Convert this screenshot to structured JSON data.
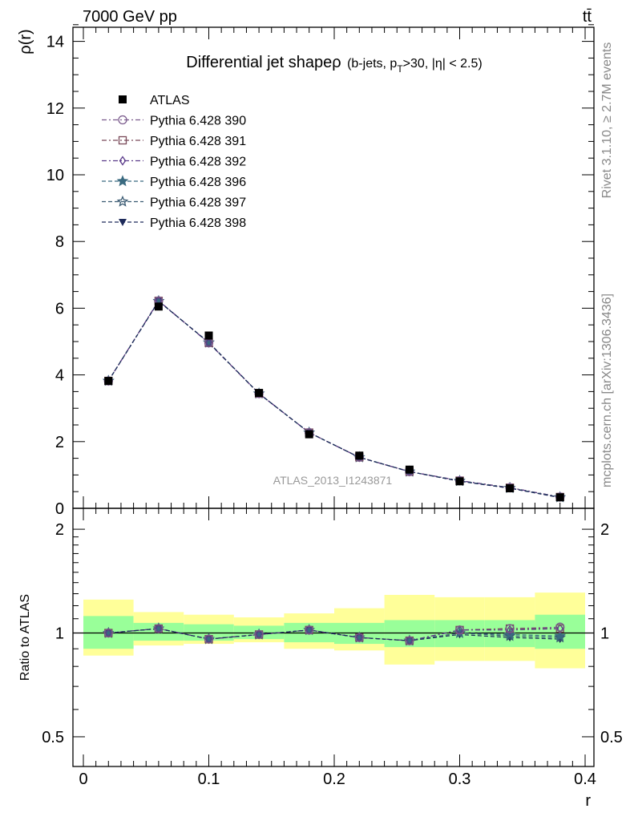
{
  "header": {
    "left": "7000 GeV pp",
    "right": "tt̄"
  },
  "side_text": {
    "rivet": "Rivet 3.1.10, ≥ 2.7M events",
    "mcplots": "mcplots.cern.ch [arXiv:1306.3436]"
  },
  "chart_data": [
    {
      "type": "scatter",
      "panel": "main",
      "title": "Differential jet shapeρ",
      "title_qualifier": "(b-jets, p_T>30, |η| < 2.5)",
      "ylabel": "ρ(r)",
      "xlabel": "",
      "xlim": [
        0,
        0.4
      ],
      "ylim": [
        0,
        14.5
      ],
      "yticks": [
        0,
        2,
        4,
        6,
        8,
        10,
        12,
        14
      ],
      "grid": false,
      "legend_position": "top-left",
      "watermark": "ATLAS_2013_I1243871",
      "x": [
        0.02,
        0.06,
        0.1,
        0.14,
        0.18,
        0.22,
        0.26,
        0.3,
        0.34,
        0.38
      ],
      "series": [
        {
          "name": "ATLAS",
          "marker": "filled-square",
          "color": "#000000",
          "values": [
            3.82,
            6.05,
            5.18,
            3.46,
            2.22,
            1.58,
            1.16,
            0.81,
            0.6,
            0.33
          ]
        },
        {
          "name": "Pythia 6.428 390",
          "marker": "open-circle",
          "color": "#7a5a8c",
          "dash": "dashdot",
          "values": [
            3.82,
            6.22,
            4.96,
            3.44,
            2.27,
            1.53,
            1.1,
            0.83,
            0.62,
            0.34
          ]
        },
        {
          "name": "Pythia 6.428 391",
          "marker": "open-square",
          "color": "#7a4a5a",
          "dash": "dashdot",
          "values": [
            3.82,
            6.22,
            4.96,
            3.44,
            2.27,
            1.53,
            1.1,
            0.83,
            0.62,
            0.34
          ]
        },
        {
          "name": "Pythia 6.428 392",
          "marker": "open-diamond",
          "color": "#5a3a8a",
          "dash": "dashdot",
          "values": [
            3.82,
            6.22,
            4.96,
            3.44,
            2.27,
            1.53,
            1.1,
            0.83,
            0.62,
            0.34
          ]
        },
        {
          "name": "Pythia 6.428 396",
          "marker": "filled-star",
          "color": "#3a6a80",
          "dash": "dashed",
          "values": [
            3.82,
            6.21,
            4.97,
            3.44,
            2.27,
            1.53,
            1.1,
            0.82,
            0.61,
            0.33
          ]
        },
        {
          "name": "Pythia 6.428 397",
          "marker": "open-star",
          "color": "#3a5a72",
          "dash": "dashed",
          "values": [
            3.82,
            6.21,
            4.97,
            3.44,
            2.27,
            1.53,
            1.1,
            0.82,
            0.61,
            0.33
          ]
        },
        {
          "name": "Pythia 6.428 398",
          "marker": "filled-triangle-down",
          "color": "#1e2a5a",
          "dash": "dashed",
          "values": [
            3.82,
            6.21,
            4.97,
            3.44,
            2.27,
            1.53,
            1.1,
            0.81,
            0.6,
            0.32
          ]
        }
      ]
    },
    {
      "type": "scatter",
      "panel": "ratio",
      "ylabel": "Ratio to ATLAS",
      "xlabel": "r",
      "xlim": [
        0,
        0.4
      ],
      "ylim": [
        0.41,
        2.3
      ],
      "ylog": true,
      "yticks": [
        0.5,
        1,
        2
      ],
      "xticks": [
        0,
        0.1,
        0.2,
        0.3,
        0.4
      ],
      "grid": false,
      "reference_line": 1,
      "bins": [
        [
          0,
          0.04
        ],
        [
          0.04,
          0.08
        ],
        [
          0.08,
          0.12
        ],
        [
          0.12,
          0.16
        ],
        [
          0.16,
          0.2
        ],
        [
          0.2,
          0.24
        ],
        [
          0.24,
          0.28
        ],
        [
          0.28,
          0.32
        ],
        [
          0.32,
          0.36
        ],
        [
          0.36,
          0.4
        ]
      ],
      "band_inner": [
        [
          0.9,
          1.12
        ],
        [
          0.95,
          1.07
        ],
        [
          0.95,
          1.06
        ],
        [
          0.96,
          1.05
        ],
        [
          0.94,
          1.07
        ],
        [
          0.93,
          1.07
        ],
        [
          0.91,
          1.09
        ],
        [
          0.91,
          1.09
        ],
        [
          0.91,
          1.09
        ],
        [
          0.9,
          1.13
        ]
      ],
      "band_outer": [
        [
          0.86,
          1.25
        ],
        [
          0.92,
          1.15
        ],
        [
          0.93,
          1.13
        ],
        [
          0.94,
          1.11
        ],
        [
          0.9,
          1.14
        ],
        [
          0.89,
          1.18
        ],
        [
          0.81,
          1.29
        ],
        [
          0.83,
          1.27
        ],
        [
          0.83,
          1.27
        ],
        [
          0.79,
          1.31
        ]
      ],
      "band_colors": {
        "inner": "#99ff99",
        "outer": "#ffff99"
      },
      "x": [
        0.02,
        0.06,
        0.1,
        0.14,
        0.18,
        0.22,
        0.26,
        0.3,
        0.34,
        0.38
      ],
      "series": [
        {
          "name": "Pythia 6.428 390",
          "values": [
            1.0,
            1.03,
            0.96,
            0.99,
            1.02,
            0.97,
            0.95,
            1.02,
            1.03,
            1.04
          ]
        },
        {
          "name": "Pythia 6.428 391",
          "values": [
            1.0,
            1.03,
            0.96,
            0.99,
            1.02,
            0.97,
            0.95,
            1.02,
            1.03,
            1.03
          ]
        },
        {
          "name": "Pythia 6.428 392",
          "values": [
            1.0,
            1.03,
            0.96,
            0.99,
            1.02,
            0.97,
            0.95,
            1.02,
            1.02,
            1.03
          ]
        },
        {
          "name": "Pythia 6.428 396",
          "values": [
            1.0,
            1.03,
            0.96,
            0.99,
            1.02,
            0.97,
            0.95,
            1.0,
            0.99,
            0.98
          ]
        },
        {
          "name": "Pythia 6.428 397",
          "values": [
            1.0,
            1.03,
            0.96,
            0.99,
            1.02,
            0.97,
            0.95,
            1.0,
            0.98,
            0.97
          ]
        },
        {
          "name": "Pythia 6.428 398",
          "values": [
            1.0,
            1.03,
            0.96,
            0.99,
            1.02,
            0.97,
            0.95,
            0.99,
            0.97,
            0.96
          ]
        }
      ]
    }
  ]
}
